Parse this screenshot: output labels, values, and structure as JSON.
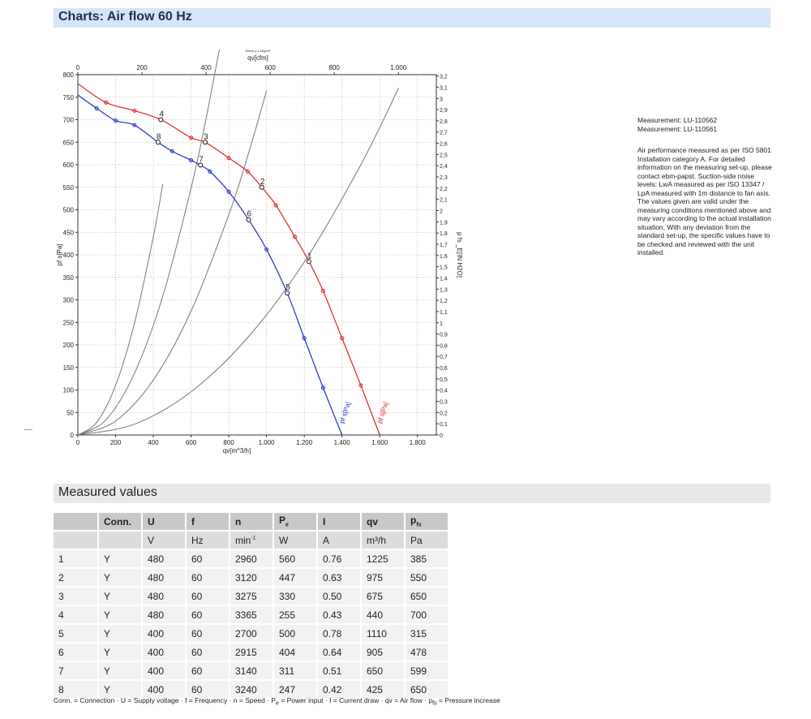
{
  "header": {
    "title": "Charts: Air flow 60 Hz"
  },
  "measurements_header": {
    "title": "Measured values"
  },
  "measurement_ids": [
    "Measurement: LU-110562",
    "Measurement: LU-110561"
  ],
  "note": "Air performance measured as per ISO 5801 Installation category A. For detailed information on the measuring set-up, please contact ebm-papst. Suction-side noise levels: LwA measured as per ISO 13347 / LpA measured with 1m distance to fan axis. The values given are valid under the measuring conditions mentioned above and may vary according to the actual installation situation. With any deviation from the standard set-up, the specific values have to be checked and reviewed with the unit installed.",
  "table": {
    "header_row_1": [
      "",
      "Conn.",
      "U",
      "f",
      "n",
      "P",
      "I",
      "qv",
      "p"
    ],
    "header_row_1_subs": {
      "pe": "e",
      "pfs": "fs"
    },
    "header_row_2": [
      "",
      "",
      "V",
      "Hz",
      "min",
      "W",
      "A",
      "m³/h",
      "Pa"
    ],
    "unit_sup": "-1",
    "rows": [
      [
        "1",
        "Y",
        "480",
        "60",
        "2960",
        "560",
        "0.76",
        "1225",
        "385"
      ],
      [
        "2",
        "Y",
        "480",
        "60",
        "3120",
        "447",
        "0.63",
        "975",
        "550"
      ],
      [
        "3",
        "Y",
        "480",
        "60",
        "3275",
        "330",
        "0.50",
        "675",
        "650"
      ],
      [
        "4",
        "Y",
        "480",
        "60",
        "3365",
        "255",
        "0.43",
        "440",
        "700"
      ],
      [
        "5",
        "Y",
        "400",
        "60",
        "2700",
        "500",
        "0.78",
        "1110",
        "315"
      ],
      [
        "6",
        "Y",
        "400",
        "60",
        "2915",
        "404",
        "0.64",
        "905",
        "478"
      ],
      [
        "7",
        "Y",
        "400",
        "60",
        "3140",
        "311",
        "0.51",
        "650",
        "599"
      ],
      [
        "8",
        "Y",
        "400",
        "60",
        "3240",
        "247",
        "0.42",
        "425",
        "650"
      ]
    ]
  },
  "legend_text": "Conn. = Connection · U = Supply voltage · f = Frequency · n = Speed · P",
  "legend_text_2": " = Power input · I = Current draw · qv = Air flow · p",
  "legend_text_3": " = Pressure increase",
  "legend_sub_e": "e",
  "legend_sub_fs": "fs",
  "chart_data": {
    "type": "line",
    "top_caption": "Druck ρ 1.2kg/m³",
    "xlabel": "qv[m^3/h]",
    "xlabel_top": "qv[cfm]",
    "ylabel": "pf s[Pa]",
    "ylabel_right": "p fs _E[IN H2O]",
    "xlim": [
      0,
      1900
    ],
    "ylim": [
      0,
      800
    ],
    "x_ticks": [
      "0",
      "200",
      "400",
      "600",
      "800",
      "1.000",
      "1.200",
      "1.400",
      "1.600",
      "1.800"
    ],
    "x_tick_values": [
      0,
      200,
      400,
      600,
      800,
      1000,
      1200,
      1400,
      1600,
      1800
    ],
    "x_top_ticks": [
      "0",
      "200",
      "400",
      "600",
      "800",
      "1.000"
    ],
    "x_top_values": [
      0,
      200,
      400,
      600,
      800,
      1000
    ],
    "y_ticks": [
      "0",
      "50",
      "100",
      "150",
      "200",
      "250",
      "300",
      "350",
      "400",
      "450",
      "500",
      "550",
      "600",
      "650",
      "700",
      "750",
      "800"
    ],
    "y_tick_values": [
      0,
      50,
      100,
      150,
      200,
      250,
      300,
      350,
      400,
      450,
      500,
      550,
      600,
      650,
      700,
      750,
      800
    ],
    "y_right_ticks": [
      "0",
      "0,1",
      "0,2",
      "0,3",
      "0,4",
      "0,5",
      "0,6",
      "0,7",
      "0,8",
      "0,9",
      "1",
      "1,1",
      "1,2",
      "1,3",
      "1,4",
      "1,5",
      "1,6",
      "1,7",
      "1,8",
      "1,9",
      "2",
      "2,1",
      "2,2",
      "2,3",
      "2,4",
      "2,5",
      "2,6",
      "2,7",
      "2,8",
      "2,9",
      "3",
      "3,1",
      "3,2"
    ],
    "grid": true,
    "series": [
      {
        "name": "pf s[Pa]",
        "color": "#e02020",
        "x": [
          0,
          150,
          300,
          440,
          600,
          675,
          800,
          900,
          975,
          1050,
          1150,
          1225,
          1300,
          1400,
          1500,
          1600
        ],
        "y": [
          780,
          738,
          720,
          700,
          660,
          650,
          615,
          585,
          550,
          510,
          440,
          385,
          320,
          215,
          110,
          0
        ]
      },
      {
        "name": "pf s[Pa]",
        "color": "#1f2fd0",
        "x": [
          0,
          100,
          200,
          300,
          425,
          500,
          600,
          650,
          700,
          800,
          905,
          1000,
          1110,
          1200,
          1300,
          1400
        ],
        "y": [
          755,
          725,
          698,
          688,
          650,
          630,
          610,
          599,
          585,
          540,
          478,
          412,
          315,
          215,
          105,
          0
        ]
      }
    ],
    "system_curves": [
      {
        "x": [
          0,
          100,
          200,
          300,
          400,
          450
        ],
        "y": [
          0,
          28,
          110,
          248,
          440,
          557
        ]
      },
      {
        "x": [
          0,
          150,
          300,
          450,
          600,
          675,
          750
        ],
        "y": [
          0,
          34,
          137,
          308,
          548,
          693,
          856
        ]
      },
      {
        "x": [
          0,
          200,
          400,
          600,
          800,
          905,
          1000
        ],
        "y": [
          0,
          31,
          122,
          275,
          489,
          626,
          764
        ]
      },
      {
        "x": [
          0,
          300,
          600,
          900,
          1200,
          1500,
          1700
        ],
        "y": [
          0,
          24,
          96,
          216,
          384,
          600,
          770
        ]
      }
    ],
    "operating_points": [
      {
        "label": "1",
        "x": 1225,
        "y": 385
      },
      {
        "label": "2",
        "x": 975,
        "y": 550
      },
      {
        "label": "3",
        "x": 675,
        "y": 650
      },
      {
        "label": "4",
        "x": 440,
        "y": 700
      },
      {
        "label": "5",
        "x": 1110,
        "y": 315
      },
      {
        "label": "6",
        "x": 905,
        "y": 478
      },
      {
        "label": "7",
        "x": 650,
        "y": 599
      },
      {
        "label": "8",
        "x": 425,
        "y": 650
      }
    ]
  }
}
